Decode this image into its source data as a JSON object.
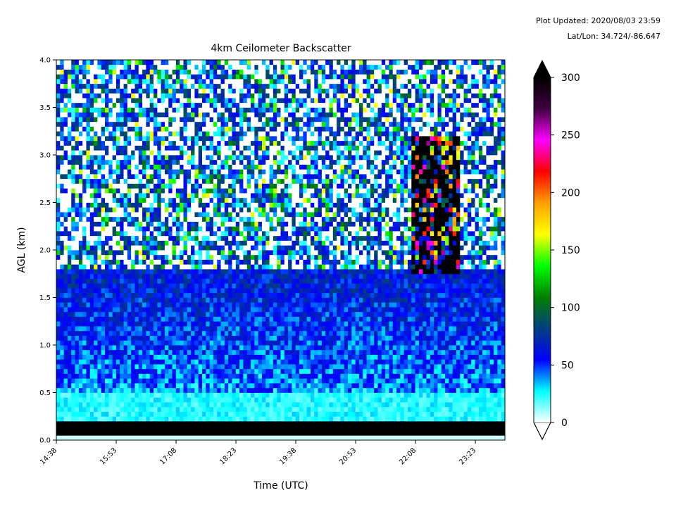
{
  "header": {
    "updated": "Plot Updated: 2020/08/03 23:59",
    "latlon": "Lat/Lon: 34.724/-86.647"
  },
  "chart_data": {
    "type": "heatmap",
    "title": "4km Ceilometer Backscatter",
    "xlabel": "Time (UTC)",
    "ylabel": "AGL (km)",
    "x_ticks": [
      "14:38",
      "15:53",
      "17:08",
      "18:23",
      "19:38",
      "20:53",
      "22:08",
      "23:23"
    ],
    "x_range_hours": [
      14.633,
      24.0
    ],
    "y_ticks": [
      "0.0",
      "0.5",
      "1.0",
      "1.5",
      "2.0",
      "2.5",
      "3.0",
      "3.5",
      "4.0"
    ],
    "ylim": [
      0,
      4.0
    ],
    "colorbar": {
      "ticks": [
        "0",
        "50",
        "100",
        "150",
        "200",
        "250",
        "300"
      ],
      "range": [
        0,
        300
      ],
      "extend": "both",
      "colors": [
        "#ffffff",
        "#00ffff",
        "#0000ff",
        "#004080",
        "#008000",
        "#00ff00",
        "#ffff00",
        "#ffa000",
        "#ff0000",
        "#ff00ff",
        "#400040",
        "#000000"
      ]
    },
    "features": [
      {
        "name": "surface layer",
        "time_start": 14.63,
        "time_end": 24.0,
        "alt_bottom_km": 0.03,
        "alt_top_km": 0.18,
        "value": 300
      },
      {
        "name": "boundary layer",
        "time_start": 14.63,
        "time_end": 24.0,
        "alt_bottom_km": 0.2,
        "alt_top_km": 1.8,
        "value": 60
      },
      {
        "name": "cloud layer",
        "time_start": 22.05,
        "time_end": 23.1,
        "alt_bottom_km": 1.75,
        "alt_top_km": 3.2,
        "value": 300
      }
    ]
  }
}
